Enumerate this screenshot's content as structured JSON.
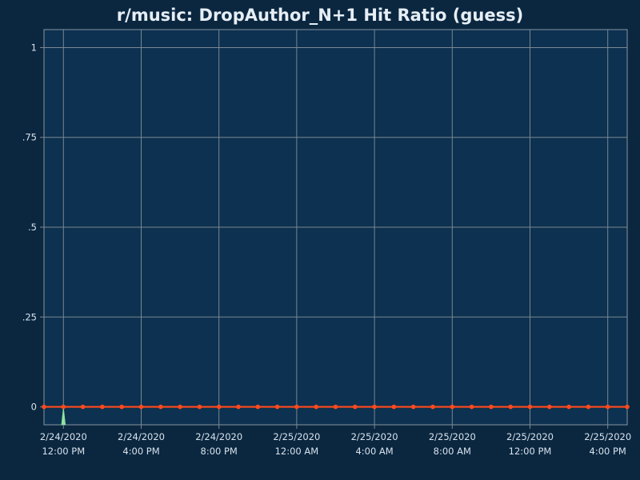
{
  "chart_data": {
    "type": "line",
    "title": "r/music: DropAuthor_N+1 Hit Ratio (guess)",
    "xlabel": "",
    "ylabel": "",
    "ylim": [
      -0.05,
      1.05
    ],
    "y_ticks": [
      "0",
      ".25",
      ".5",
      ".75",
      "1"
    ],
    "y_tick_values": [
      0,
      0.25,
      0.5,
      0.75,
      1
    ],
    "x_range_hours": [
      -1,
      29
    ],
    "x_ticks": [
      {
        "hour": 0,
        "date": "2/24/2020",
        "time": "12:00 PM"
      },
      {
        "hour": 4,
        "date": "2/24/2020",
        "time": "4:00 PM"
      },
      {
        "hour": 8,
        "date": "2/24/2020",
        "time": "8:00 PM"
      },
      {
        "hour": 12,
        "date": "2/25/2020",
        "time": "12:00 AM"
      },
      {
        "hour": 16,
        "date": "2/25/2020",
        "time": "4:00 AM"
      },
      {
        "hour": 20,
        "date": "2/25/2020",
        "time": "8:00 AM"
      },
      {
        "hour": 24,
        "date": "2/25/2020",
        "time": "12:00 PM"
      },
      {
        "hour": 28,
        "date": "2/25/2020",
        "time": "4:00 PM"
      }
    ],
    "grid": true,
    "colors": {
      "background": "#0b2740",
      "plot_background": "#0d3150",
      "grid": "#7b8791",
      "line": "#ff4a1c",
      "spike": "#8fe3a0"
    },
    "series": [
      {
        "x": [
          -1,
          0,
          1,
          2,
          3,
          4,
          5,
          6,
          7,
          8,
          9,
          10,
          11,
          12,
          13,
          14,
          15,
          16,
          17,
          18,
          19,
          20,
          21,
          22,
          23,
          24,
          25,
          26,
          27,
          28,
          29
        ],
        "values": [
          0,
          0,
          0,
          0,
          0,
          0,
          0,
          0,
          0,
          0,
          0,
          0,
          0,
          0,
          0,
          0,
          0,
          0,
          0,
          0,
          0,
          0,
          0,
          0,
          0,
          0,
          0,
          0,
          0,
          0,
          0
        ]
      }
    ],
    "spike": {
      "x": 0,
      "value": 0
    }
  }
}
